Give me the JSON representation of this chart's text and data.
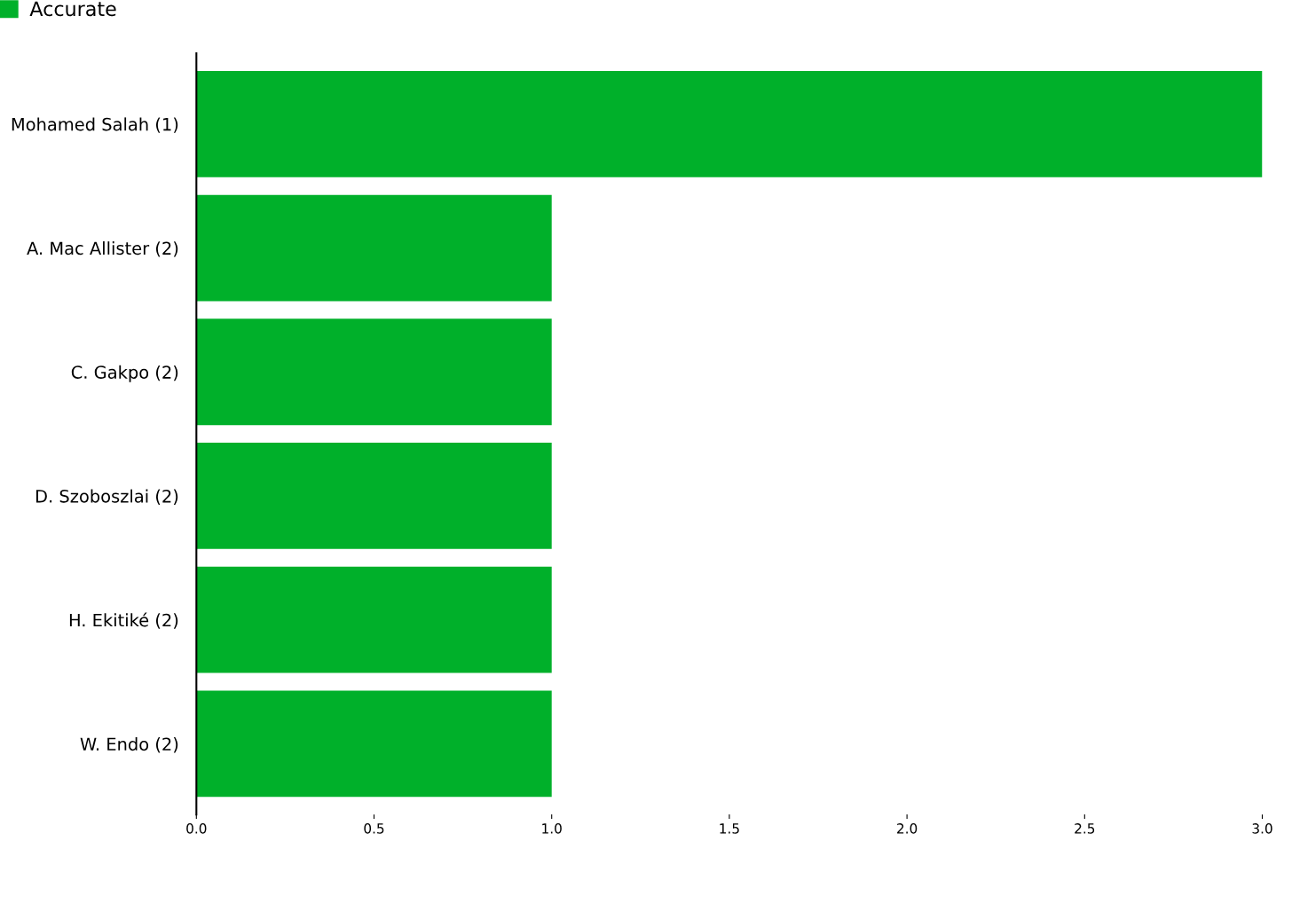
{
  "chart_data": {
    "type": "bar",
    "orientation": "horizontal",
    "categories": [
      "Mohamed Salah (1)",
      "A. Mac Allister (2)",
      "C. Gakpo (2)",
      "D. Szoboszlai (2)",
      "H. Ekitiké (2)",
      "W. Endo (2)"
    ],
    "series": [
      {
        "name": "Accurate",
        "color": "#00b02a",
        "values": [
          3,
          1,
          1,
          1,
          1,
          1
        ]
      }
    ],
    "xlim": [
      0,
      3
    ],
    "xticks": [
      {
        "value": 0,
        "label": "0.0"
      },
      {
        "value": 0.5,
        "label": "0.5"
      },
      {
        "value": 1,
        "label": "1.0"
      },
      {
        "value": 1.5,
        "label": "1.5"
      },
      {
        "value": 2,
        "label": "2.0"
      },
      {
        "value": 2.5,
        "label": "2.5"
      },
      {
        "value": 3,
        "label": "3.0"
      }
    ],
    "grid": false,
    "legend": "top left"
  }
}
